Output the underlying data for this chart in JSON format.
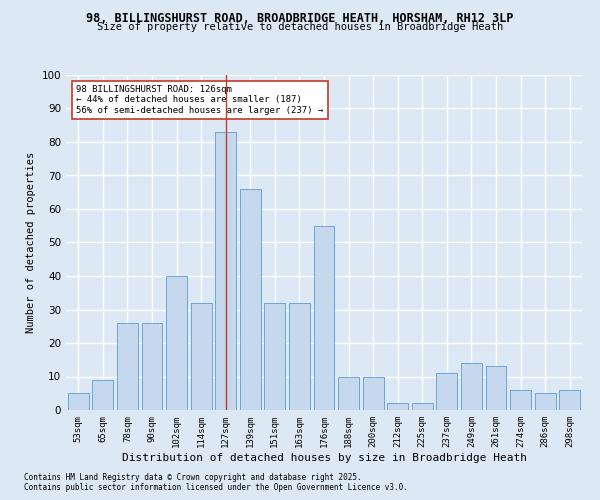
{
  "title1": "98, BILLINGSHURST ROAD, BROADBRIDGE HEATH, HORSHAM, RH12 3LP",
  "title2": "Size of property relative to detached houses in Broadbridge Heath",
  "xlabel": "Distribution of detached houses by size in Broadbridge Heath",
  "ylabel": "Number of detached properties",
  "bins": [
    "53sqm",
    "65sqm",
    "78sqm",
    "90sqm",
    "102sqm",
    "114sqm",
    "127sqm",
    "139sqm",
    "151sqm",
    "163sqm",
    "176sqm",
    "188sqm",
    "200sqm",
    "212sqm",
    "225sqm",
    "237sqm",
    "249sqm",
    "261sqm",
    "274sqm",
    "286sqm",
    "298sqm"
  ],
  "values": [
    5,
    9,
    26,
    26,
    40,
    32,
    83,
    66,
    32,
    32,
    55,
    10,
    10,
    2,
    2,
    11,
    14,
    13,
    6,
    5,
    6
  ],
  "bar_color": "#c5d8ed",
  "bar_edge_color": "#5b9bd5",
  "vline_x": 6,
  "vline_color": "#c0392b",
  "annotation_text": "98 BILLINGSHURST ROAD: 126sqm\n← 44% of detached houses are smaller (187)\n56% of semi-detached houses are larger (237) →",
  "annotation_box_color": "#ffffff",
  "annotation_box_edge": "#c0392b",
  "background_color": "#dce9f5",
  "grid_color": "#ffffff",
  "footnote1": "Contains HM Land Registry data © Crown copyright and database right 2025.",
  "footnote2": "Contains public sector information licensed under the Open Government Licence v3.0.",
  "ylim": [
    0,
    100
  ],
  "yticks": [
    0,
    10,
    20,
    30,
    40,
    50,
    60,
    70,
    80,
    90,
    100
  ]
}
